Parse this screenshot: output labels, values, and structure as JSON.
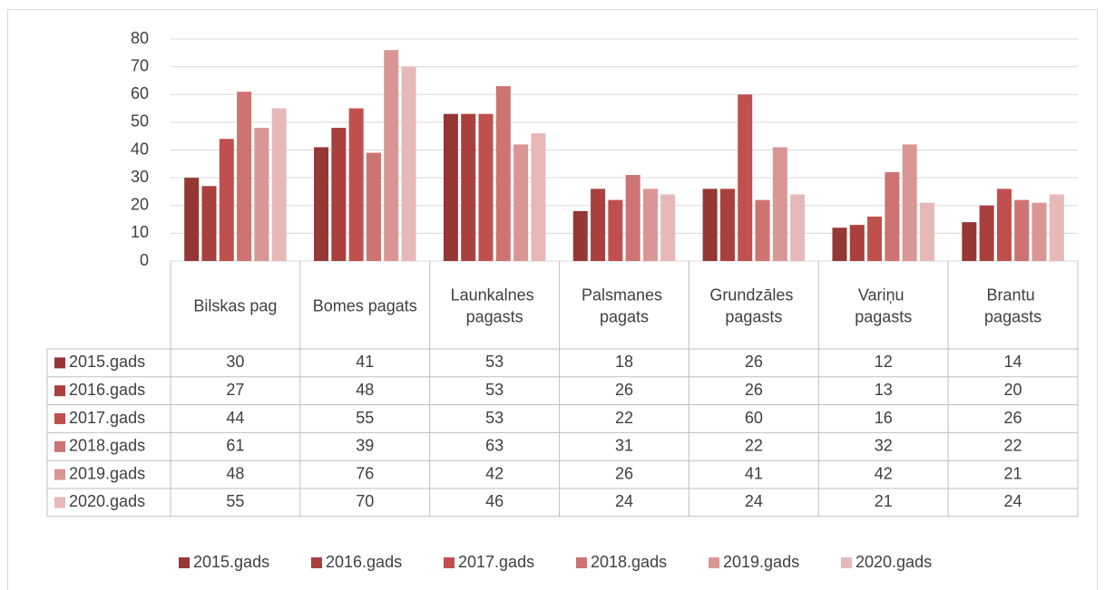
{
  "chart_data": {
    "type": "bar",
    "categories": [
      "Bilskas pag",
      "Bomes pagats",
      "Launkalnes pagasts",
      "Palsmanes pagats",
      "Grundzāles pagasts",
      "Variņu pagasts",
      "Brantu pagasts"
    ],
    "series": [
      {
        "name": "2015.gads",
        "color": "#953735",
        "values": [
          30,
          41,
          53,
          18,
          26,
          12,
          14
        ]
      },
      {
        "name": "2016.gads",
        "color": "#a9403d",
        "values": [
          27,
          48,
          53,
          26,
          26,
          13,
          20
        ]
      },
      {
        "name": "2017.gads",
        "color": "#c0504d",
        "values": [
          44,
          55,
          53,
          22,
          60,
          16,
          26
        ]
      },
      {
        "name": "2018.gads",
        "color": "#cd7371",
        "values": [
          61,
          39,
          63,
          31,
          22,
          32,
          22
        ]
      },
      {
        "name": "2019.gads",
        "color": "#d99694",
        "values": [
          48,
          76,
          42,
          26,
          41,
          42,
          21
        ]
      },
      {
        "name": "2020.gads",
        "color": "#e6b9b8",
        "values": [
          55,
          70,
          46,
          24,
          24,
          21,
          24
        ]
      }
    ],
    "ylim": [
      0,
      80
    ],
    "yticks": [
      0,
      10,
      20,
      30,
      40,
      50,
      60,
      70,
      80
    ],
    "grid": true,
    "legend": "bottom"
  }
}
